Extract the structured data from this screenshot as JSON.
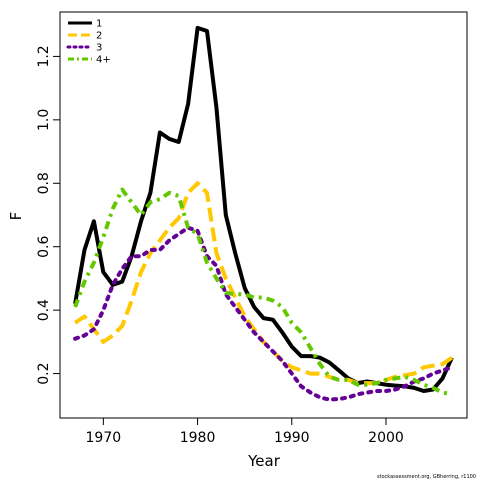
{
  "credit": "stockassessment.org, GBherring, r1100",
  "chart_data": {
    "type": "line",
    "xlabel": "Year",
    "ylabel": "F",
    "x_ticks": [
      1970,
      1980,
      1990,
      2000
    ],
    "y_ticks": [
      "0.2",
      "0.4",
      "0.6",
      "0.8",
      "1.0",
      "1.2"
    ],
    "xlim": [
      1965.4,
      2008.6
    ],
    "ylim": [
      0.06,
      1.34
    ],
    "grid": false,
    "legend_position": "top-left",
    "x": [
      1967,
      1968,
      1969,
      1970,
      1971,
      1972,
      1973,
      1974,
      1975,
      1976,
      1977,
      1978,
      1979,
      1980,
      1981,
      1982,
      1983,
      1984,
      1985,
      1986,
      1987,
      1988,
      1989,
      1990,
      1991,
      1992,
      1993,
      1994,
      1995,
      1996,
      1997,
      1998,
      1999,
      2000,
      2001,
      2002,
      2003,
      2004,
      2005,
      2006,
      2007
    ],
    "series": [
      {
        "name": "1",
        "color": "#000000",
        "style": "solid",
        "width": 4,
        "values": [
          0.42,
          0.59,
          0.68,
          0.52,
          0.48,
          0.49,
          0.57,
          0.68,
          0.77,
          0.96,
          0.94,
          0.93,
          1.05,
          1.29,
          1.28,
          1.04,
          0.7,
          0.58,
          0.47,
          0.41,
          0.375,
          0.37,
          0.33,
          0.285,
          0.255,
          0.255,
          0.25,
          0.235,
          0.21,
          0.185,
          0.17,
          0.175,
          0.17,
          0.165,
          0.162,
          0.16,
          0.155,
          0.145,
          0.15,
          0.185,
          0.25
        ]
      },
      {
        "name": "2",
        "color": "#FFC800",
        "style": "dashed",
        "width": 4,
        "values": [
          0.36,
          0.38,
          0.34,
          0.3,
          0.32,
          0.35,
          0.43,
          0.52,
          0.58,
          0.62,
          0.66,
          0.69,
          0.77,
          0.8,
          0.77,
          0.58,
          0.5,
          0.44,
          0.38,
          0.34,
          0.3,
          0.27,
          0.24,
          0.22,
          0.21,
          0.2,
          0.2,
          0.19,
          0.18,
          0.18,
          0.17,
          0.17,
          0.17,
          0.18,
          0.19,
          0.195,
          0.2,
          0.22,
          0.225,
          0.23,
          0.25
        ]
      },
      {
        "name": "3",
        "color": "#640096",
        "style": "dotted",
        "width": 4,
        "values": [
          0.31,
          0.32,
          0.34,
          0.4,
          0.48,
          0.53,
          0.57,
          0.57,
          0.59,
          0.59,
          0.62,
          0.64,
          0.66,
          0.65,
          0.57,
          0.54,
          0.45,
          0.41,
          0.37,
          0.33,
          0.3,
          0.27,
          0.24,
          0.2,
          0.16,
          0.14,
          0.125,
          0.118,
          0.12,
          0.125,
          0.135,
          0.14,
          0.145,
          0.145,
          0.15,
          0.16,
          0.175,
          0.185,
          0.2,
          0.21,
          0.22
        ]
      },
      {
        "name": "4+",
        "color": "#64C800",
        "style": "dashdot",
        "width": 4,
        "values": [
          0.41,
          0.49,
          0.55,
          0.63,
          0.72,
          0.78,
          0.74,
          0.7,
          0.74,
          0.75,
          0.77,
          0.76,
          0.66,
          0.64,
          0.55,
          0.5,
          0.455,
          0.45,
          0.45,
          0.44,
          0.44,
          0.43,
          0.41,
          0.36,
          0.33,
          0.28,
          0.23,
          0.19,
          0.18,
          0.18,
          0.165,
          0.165,
          0.17,
          0.18,
          0.185,
          0.19,
          0.18,
          0.165,
          0.155,
          0.14,
          0.135
        ]
      }
    ]
  }
}
